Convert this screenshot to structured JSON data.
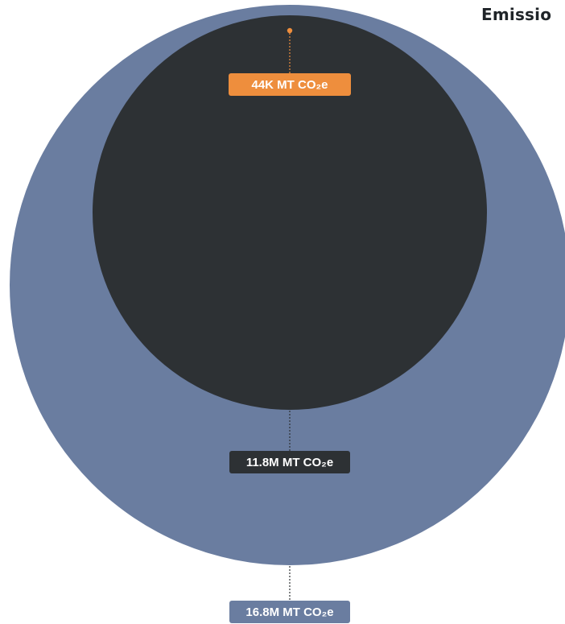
{
  "chart_data": {
    "type": "nested-bubble",
    "title": "Emissio",
    "series": [
      {
        "value": 16.8,
        "unit": "M MT CO2e",
        "label": "16.8M MT CO₂e",
        "color": "#6a7da0",
        "label_color": "#6a7da0"
      },
      {
        "value": 11.8,
        "unit": "M MT CO2e",
        "label": "11.8M MT CO₂e",
        "color": "#2d3134",
        "label_color": "#2d3134"
      },
      {
        "value": 0.044,
        "unit": "M MT CO2e",
        "label": "44K MT CO₂e",
        "color": "#ee8e3d",
        "label_color": "#ee8e3d"
      }
    ]
  }
}
